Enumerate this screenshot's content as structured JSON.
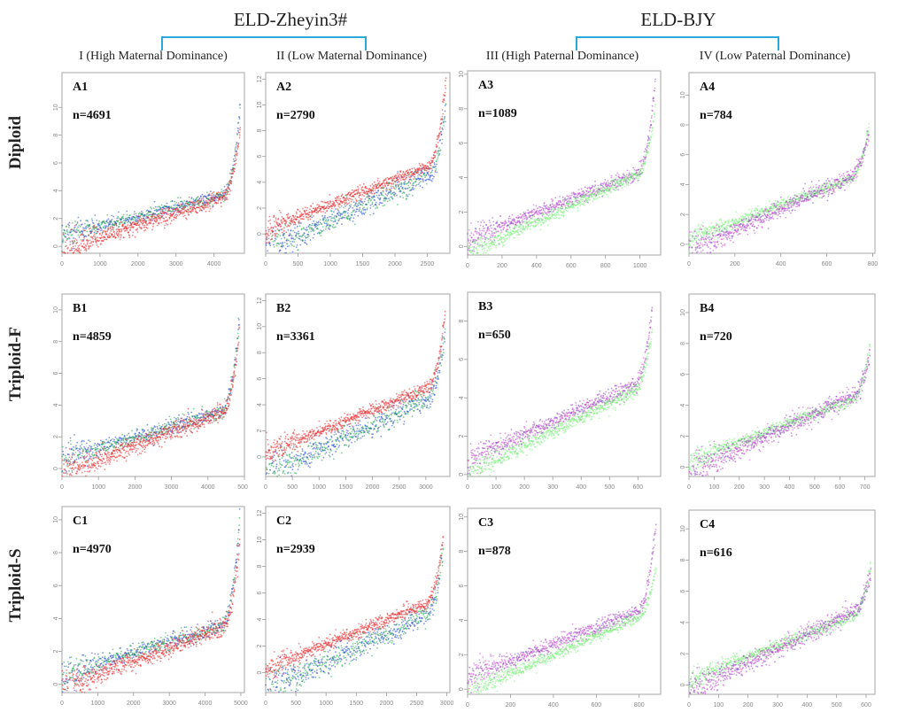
{
  "header": {
    "groups": [
      {
        "title": "ELD-Zheyin3#",
        "columns": [
          0,
          1
        ]
      },
      {
        "title": "ELD-BJY",
        "columns": [
          2,
          3
        ]
      }
    ],
    "bracket_color": "#29a9d9",
    "columns": [
      "I (High Maternal Dominance)",
      "II (Low  Maternal Dominance)",
      "III (High Paternal Dominance)",
      "IV (Low Paternal Dominance)"
    ],
    "rows": [
      "Diploid",
      "Triploid-F",
      "Triploid-S"
    ]
  },
  "colors": {
    "red": "#e8262a",
    "blue": "#1f3fd6",
    "green_dark": "#1aa84a",
    "purple": "#8a3fc4",
    "magenta": "#d64bd0",
    "light_green": "#7cf07c"
  },
  "chart_data": [
    {
      "type": "scatter",
      "id": "A1",
      "n_label": "n=4691",
      "n": 4691,
      "row": "Diploid",
      "column": "I (High Maternal Dominance)",
      "xlim": [
        0,
        4800
      ],
      "ylim": [
        -0.5,
        12.5
      ],
      "xticks": [
        0,
        1000,
        2000,
        3000,
        4000
      ],
      "yticks": [
        0,
        2,
        4,
        6,
        8,
        10
      ],
      "series": [
        {
          "name": "upper",
          "colors": [
            "blue",
            "green_dark"
          ],
          "start": 0.8,
          "mid_slope": 3.2,
          "end": 10,
          "spread": 0.4
        },
        {
          "name": "lower",
          "colors": [
            "red"
          ],
          "start": -0.3,
          "mid_slope": 4.2,
          "end": 8.5,
          "spread": 0.5
        }
      ]
    },
    {
      "type": "scatter",
      "id": "A2",
      "n_label": "n=2790",
      "n": 2790,
      "row": "Diploid",
      "column": "II (Low  Maternal Dominance)",
      "xlim": [
        0,
        2850
      ],
      "ylim": [
        -1.5,
        12.5
      ],
      "xticks": [
        0,
        500,
        1000,
        1500,
        2000,
        2500
      ],
      "yticks": [
        0,
        2,
        4,
        6,
        8,
        10,
        12
      ],
      "series": [
        {
          "name": "upper",
          "colors": [
            "red"
          ],
          "start": 0.3,
          "mid_slope": 5.5,
          "end": 12,
          "spread": 0.4
        },
        {
          "name": "lower",
          "colors": [
            "blue",
            "green_dark"
          ],
          "start": -1.2,
          "mid_slope": 6.2,
          "end": 10,
          "spread": 0.7
        }
      ]
    },
    {
      "type": "scatter",
      "id": "A3",
      "n_label": "n=1089",
      "n": 1089,
      "row": "Diploid",
      "column": "III (High Paternal Dominance)",
      "xlim": [
        0,
        1120
      ],
      "ylim": [
        -0.5,
        10.2
      ],
      "xticks": [
        0,
        200,
        400,
        600,
        800,
        1000
      ],
      "yticks": [
        0,
        2,
        4,
        6,
        8,
        10
      ],
      "series": [
        {
          "name": "upper",
          "colors": [
            "purple",
            "magenta"
          ],
          "start": 0.4,
          "mid_slope": 4.2,
          "end": 9.5,
          "spread": 0.35
        },
        {
          "name": "lower",
          "colors": [
            "light_green"
          ],
          "start": -0.4,
          "mid_slope": 5.0,
          "end": 8.0,
          "spread": 0.3
        }
      ]
    },
    {
      "type": "scatter",
      "id": "A4",
      "n_label": "n=784",
      "n": 784,
      "row": "Diploid",
      "column": "IV (Low Paternal Dominance)",
      "xlim": [
        0,
        810
      ],
      "ylim": [
        -0.6,
        11.5
      ],
      "xticks": [
        0,
        200,
        400,
        600,
        800
      ],
      "yticks": [
        0,
        2,
        4,
        6,
        8,
        10
      ],
      "series": [
        {
          "name": "upper",
          "colors": [
            "light_green"
          ],
          "start": 0.4,
          "mid_slope": 4.4,
          "end": 8.0,
          "spread": 0.3
        },
        {
          "name": "lower",
          "colors": [
            "purple",
            "magenta"
          ],
          "start": -0.5,
          "mid_slope": 5.6,
          "end": 7.5,
          "spread": 0.5
        }
      ]
    },
    {
      "type": "scatter",
      "id": "B1",
      "n_label": "n=4859",
      "n": 4859,
      "row": "Triploid-F",
      "column": "I (High Maternal Dominance)",
      "xlim": [
        0,
        5000
      ],
      "ylim": [
        -0.5,
        11.0
      ],
      "xticks": [
        0,
        1000,
        2000,
        3000,
        4000,
        5000
      ],
      "yticks": [
        0,
        2,
        4,
        6,
        8,
        10
      ],
      "series": [
        {
          "name": "upper",
          "colors": [
            "blue",
            "green_dark"
          ],
          "start": 0.6,
          "mid_slope": 3.3,
          "end": 9.5,
          "spread": 0.4
        },
        {
          "name": "lower",
          "colors": [
            "red"
          ],
          "start": -0.3,
          "mid_slope": 4.2,
          "end": 8.5,
          "spread": 0.5
        }
      ]
    },
    {
      "type": "scatter",
      "id": "B2",
      "n_label": "n=3361",
      "n": 3361,
      "row": "Triploid-F",
      "column": "II (Low  Maternal Dominance)",
      "xlim": [
        0,
        3450
      ],
      "ylim": [
        -1.5,
        12.5
      ],
      "xticks": [
        0,
        500,
        1000,
        1500,
        2000,
        2500,
        3000
      ],
      "yticks": [
        0,
        2,
        4,
        6,
        8,
        10,
        12
      ],
      "series": [
        {
          "name": "upper",
          "colors": [
            "red"
          ],
          "start": 0.3,
          "mid_slope": 5.5,
          "end": 11,
          "spread": 0.4
        },
        {
          "name": "lower",
          "colors": [
            "blue",
            "green_dark"
          ],
          "start": -1.3,
          "mid_slope": 6.3,
          "end": 9.5,
          "spread": 0.7
        }
      ]
    },
    {
      "type": "scatter",
      "id": "B3",
      "n_label": "n=650",
      "n": 650,
      "row": "Triploid-F",
      "column": "III (High Paternal Dominance)",
      "xlim": [
        0,
        680
      ],
      "ylim": [
        -0.1,
        9.5
      ],
      "xticks": [
        0,
        100,
        200,
        300,
        400,
        500,
        600
      ],
      "yticks": [
        0,
        2,
        4,
        6,
        8
      ],
      "series": [
        {
          "name": "upper",
          "colors": [
            "purple",
            "magenta"
          ],
          "start": 0.8,
          "mid_slope": 4.2,
          "end": 8.5,
          "spread": 0.35
        },
        {
          "name": "lower",
          "colors": [
            "light_green"
          ],
          "start": 0.0,
          "mid_slope": 4.8,
          "end": 7.5,
          "spread": 0.3
        }
      ]
    },
    {
      "type": "scatter",
      "id": "B4",
      "n_label": "n=720",
      "n": 720,
      "row": "Triploid-F",
      "column": "IV (Low Paternal Dominance)",
      "xlim": [
        0,
        740
      ],
      "ylim": [
        -0.6,
        11.2
      ],
      "xticks": [
        0,
        100,
        200,
        300,
        400,
        500,
        600,
        700
      ],
      "yticks": [
        0,
        2,
        4,
        6,
        8,
        10
      ],
      "series": [
        {
          "name": "upper",
          "colors": [
            "light_green"
          ],
          "start": 0.4,
          "mid_slope": 4.4,
          "end": 7.8,
          "spread": 0.3
        },
        {
          "name": "lower",
          "colors": [
            "purple",
            "magenta"
          ],
          "start": -0.4,
          "mid_slope": 5.6,
          "end": 7.2,
          "spread": 0.5
        }
      ]
    },
    {
      "type": "scatter",
      "id": "C1",
      "n_label": "n=4970",
      "n": 4970,
      "row": "Triploid-S",
      "column": "I (High Maternal Dominance)",
      "xlim": [
        0,
        5100
      ],
      "ylim": [
        -0.5,
        10.8
      ],
      "xticks": [
        0,
        1000,
        2000,
        3000,
        4000,
        5000
      ],
      "yticks": [
        0,
        2,
        4,
        6,
        8,
        10
      ],
      "series": [
        {
          "name": "upper",
          "colors": [
            "blue",
            "green_dark"
          ],
          "start": 0.6,
          "mid_slope": 3.3,
          "end": 10,
          "spread": 0.4
        },
        {
          "name": "lower",
          "colors": [
            "red"
          ],
          "start": -0.3,
          "mid_slope": 4.2,
          "end": 8.5,
          "spread": 0.5
        }
      ]
    },
    {
      "type": "scatter",
      "id": "C2",
      "n_label": "n=2939",
      "n": 2939,
      "row": "Triploid-S",
      "column": "II (Low  Maternal Dominance)",
      "xlim": [
        0,
        3050
      ],
      "ylim": [
        -1.5,
        12.5
      ],
      "xticks": [
        0,
        500,
        1000,
        1500,
        2000,
        2500,
        3000
      ],
      "yticks": [
        0,
        2,
        4,
        6,
        8,
        10,
        12
      ],
      "series": [
        {
          "name": "upper",
          "colors": [
            "red"
          ],
          "start": 0.3,
          "mid_slope": 5.4,
          "end": 10,
          "spread": 0.4
        },
        {
          "name": "lower",
          "colors": [
            "blue",
            "green_dark"
          ],
          "start": -1.3,
          "mid_slope": 6.2,
          "end": 9.0,
          "spread": 0.7
        }
      ]
    },
    {
      "type": "scatter",
      "id": "C3",
      "n_label": "n=878",
      "n": 878,
      "row": "Triploid-S",
      "column": "III (High Paternal Dominance)",
      "xlim": [
        0,
        900
      ],
      "ylim": [
        -0.3,
        10.5
      ],
      "xticks": [
        0,
        200,
        400,
        600,
        800
      ],
      "yticks": [
        0,
        2,
        4,
        6,
        8,
        10
      ],
      "series": [
        {
          "name": "upper",
          "colors": [
            "purple",
            "magenta"
          ],
          "start": 0.7,
          "mid_slope": 4.2,
          "end": 9.5,
          "spread": 0.35
        },
        {
          "name": "lower",
          "colors": [
            "light_green"
          ],
          "start": -0.2,
          "mid_slope": 4.8,
          "end": 7.0,
          "spread": 0.3
        }
      ]
    },
    {
      "type": "scatter",
      "id": "C4",
      "n_label": "n=616",
      "n": 616,
      "row": "Triploid-S",
      "column": "IV (Low Paternal Dominance)",
      "xlim": [
        0,
        630
      ],
      "ylim": [
        -0.6,
        11.2
      ],
      "xticks": [
        0,
        100,
        200,
        300,
        400,
        500,
        600
      ],
      "yticks": [
        0,
        2,
        4,
        6,
        8,
        10
      ],
      "series": [
        {
          "name": "upper",
          "colors": [
            "light_green"
          ],
          "start": 0.4,
          "mid_slope": 4.4,
          "end": 7.8,
          "spread": 0.3
        },
        {
          "name": "lower",
          "colors": [
            "purple",
            "magenta"
          ],
          "start": -0.4,
          "mid_slope": 5.6,
          "end": 7.2,
          "spread": 0.5
        }
      ]
    }
  ]
}
